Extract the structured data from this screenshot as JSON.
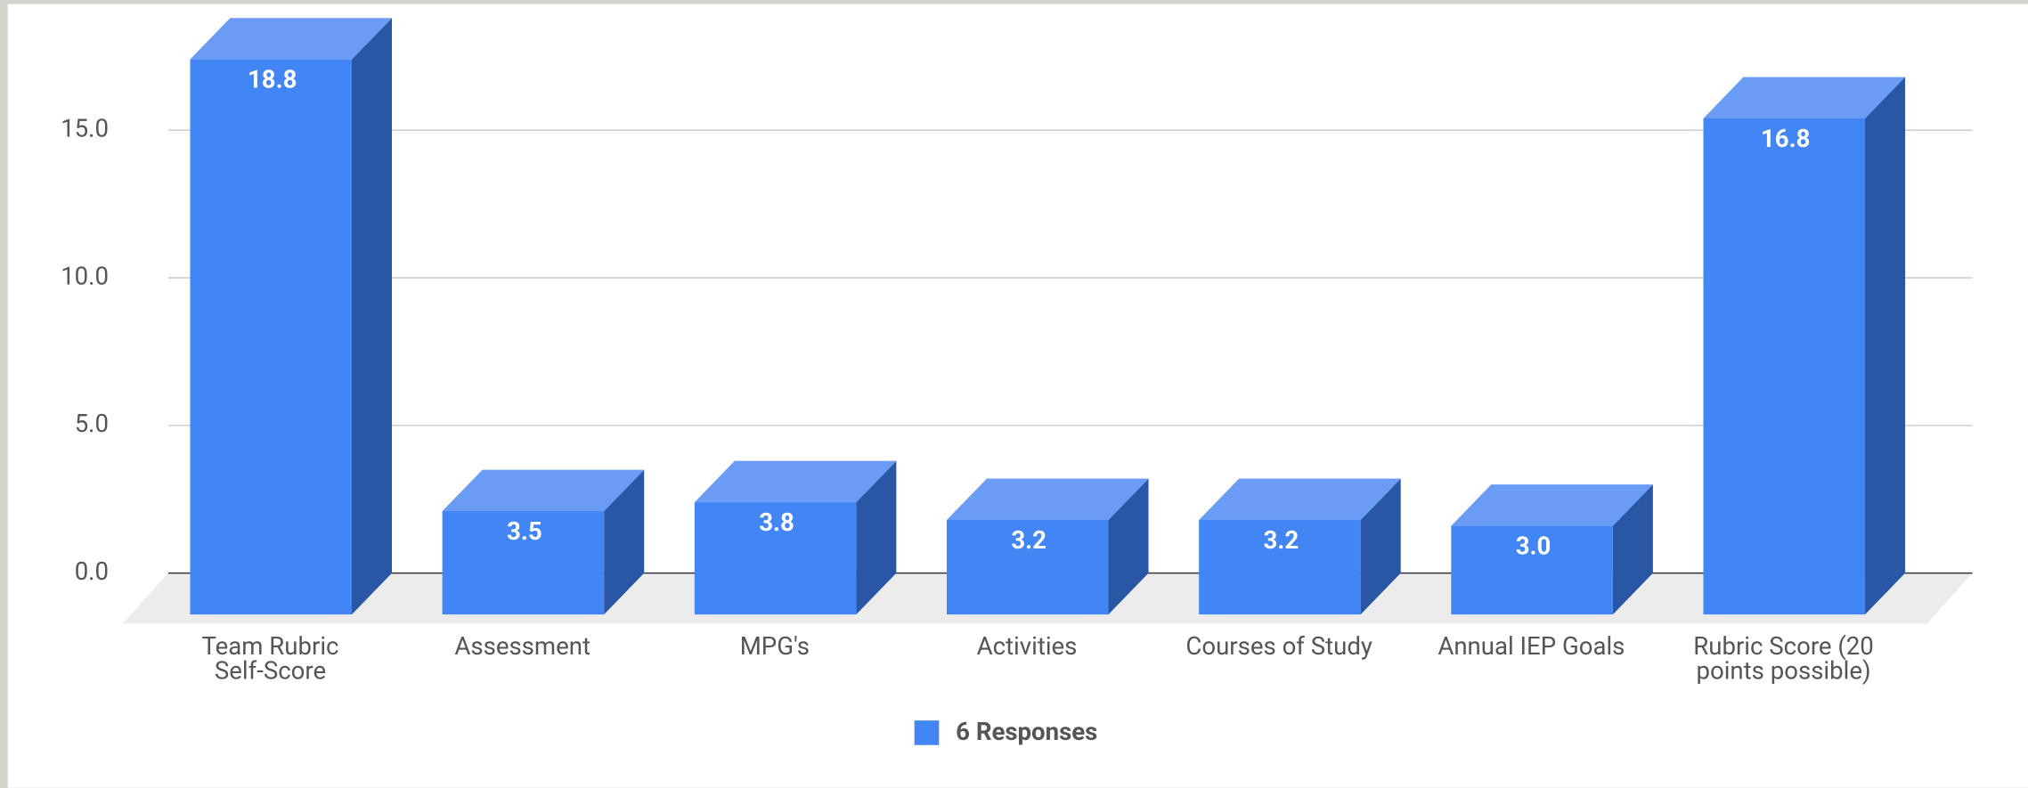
{
  "chart_data": {
    "type": "bar3d",
    "categories": [
      "Team Rubric Self-Score",
      "Assessment",
      "MPG's",
      "Activities",
      "Courses of Study",
      "Annual IEP Goals",
      "Rubric Score (20 points possible)"
    ],
    "series": [
      {
        "name": "6 Responses",
        "color": "#4285f4",
        "values": [
          18.8,
          3.5,
          3.8,
          3.2,
          3.2,
          3.0,
          16.8
        ],
        "value_labels": [
          "18.8",
          "3.5",
          "3.8",
          "3.2",
          "3.2",
          "3.0",
          "16.8"
        ]
      }
    ],
    "ylim": [
      0,
      19.4
    ],
    "yticks": [
      {
        "value": 0,
        "label": "0.0"
      },
      {
        "value": 5,
        "label": "5.0"
      },
      {
        "value": 10,
        "label": "10.0"
      },
      {
        "value": 15,
        "label": "15.0"
      }
    ],
    "grid": true,
    "legend": "bottom"
  }
}
